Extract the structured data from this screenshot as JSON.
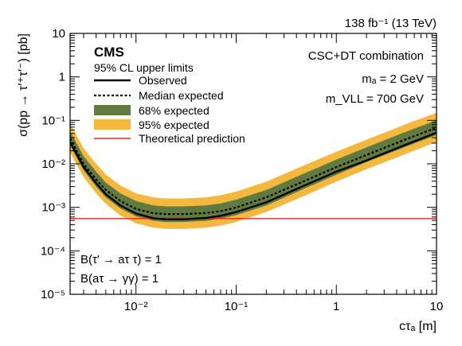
{
  "chart_data": {
    "type": "line",
    "lumi_label": "138 fb⁻¹ (13 TeV)",
    "experiment": "CMS",
    "subtitle": "95% CL upper limits",
    "combination": "CSC+DT combination",
    "params": [
      "mₐ = 2 GeV",
      "m_VLL = 700 GeV"
    ],
    "assumptions": [
      "B(τ′ → aτ τ) = 1",
      "B(aτ → γγ) = 1"
    ],
    "xlabel": "cτₐ [m]",
    "ylabel": "σ(pp → τ′⁺τ′⁻) [pb]",
    "xscale": "log",
    "yscale": "log",
    "xlim": [
      0.0022,
      10
    ],
    "ylim": [
      1e-05,
      10
    ],
    "x_ticks": [
      0.01,
      0.1,
      1,
      10
    ],
    "x_tick_labels": [
      "10⁻²",
      "10⁻¹",
      "1",
      "10"
    ],
    "y_ticks": [
      1e-05,
      0.0001,
      0.001,
      0.01,
      0.1,
      1,
      10
    ],
    "y_tick_labels": [
      "10⁻⁵",
      "10⁻⁴",
      "10⁻³",
      "10⁻²",
      "10⁻¹",
      "1",
      "10"
    ],
    "legend_placement": "top-left",
    "legend": {
      "observed": "Observed",
      "median": "Median expected",
      "band68": "68% expected",
      "band95": "95% expected",
      "theory": "Theoretical prediction"
    },
    "colors": {
      "band68": "#607a40",
      "band95": "#f5b83f",
      "theory": "#ee2222",
      "line": "#000000"
    },
    "x": [
      0.0022,
      0.003,
      0.004,
      0.005,
      0.007,
      0.01,
      0.015,
      0.02,
      0.03,
      0.05,
      0.07,
      0.1,
      0.2,
      0.5,
      1,
      2,
      5,
      10
    ],
    "series": [
      {
        "name": "Observed",
        "values": [
          0.032,
          0.0085,
          0.0036,
          0.002,
          0.0011,
          0.00072,
          0.00056,
          0.00053,
          0.00053,
          0.00057,
          0.00064,
          0.00078,
          0.0013,
          0.0033,
          0.0066,
          0.012,
          0.028,
          0.052
        ]
      },
      {
        "name": "Median expected",
        "values": [
          0.038,
          0.01,
          0.0044,
          0.0025,
          0.0014,
          0.00092,
          0.00073,
          0.0007,
          0.0007,
          0.00074,
          0.00082,
          0.00099,
          0.0017,
          0.0042,
          0.0084,
          0.016,
          0.037,
          0.068
        ]
      },
      {
        "name": "68% expected",
        "lower": [
          0.026,
          0.0071,
          0.003,
          0.0017,
          0.00094,
          0.00062,
          0.00049,
          0.00046,
          0.00046,
          0.00049,
          0.00055,
          0.00066,
          0.0011,
          0.0028,
          0.0056,
          0.011,
          0.025,
          0.046
        ],
        "upper": [
          0.056,
          0.015,
          0.0066,
          0.0037,
          0.0021,
          0.0014,
          0.0011,
          0.00105,
          0.00105,
          0.00111,
          0.00123,
          0.0015,
          0.0025,
          0.0063,
          0.0125,
          0.024,
          0.055,
          0.1
        ]
      },
      {
        "name": "95% expected",
        "lower": [
          0.018,
          0.005,
          0.0021,
          0.0012,
          0.00065,
          0.00043,
          0.00034,
          0.00032,
          0.00032,
          0.00034,
          0.00038,
          0.00046,
          0.00078,
          0.0019,
          0.0039,
          0.0075,
          0.017,
          0.032
        ],
        "upper": [
          0.085,
          0.023,
          0.01,
          0.0057,
          0.0032,
          0.0021,
          0.0017,
          0.0016,
          0.0016,
          0.0017,
          0.0019,
          0.0023,
          0.0039,
          0.0097,
          0.019,
          0.036,
          0.083,
          0.15
        ]
      },
      {
        "name": "Theoretical prediction",
        "constant": 0.00055
      }
    ]
  }
}
